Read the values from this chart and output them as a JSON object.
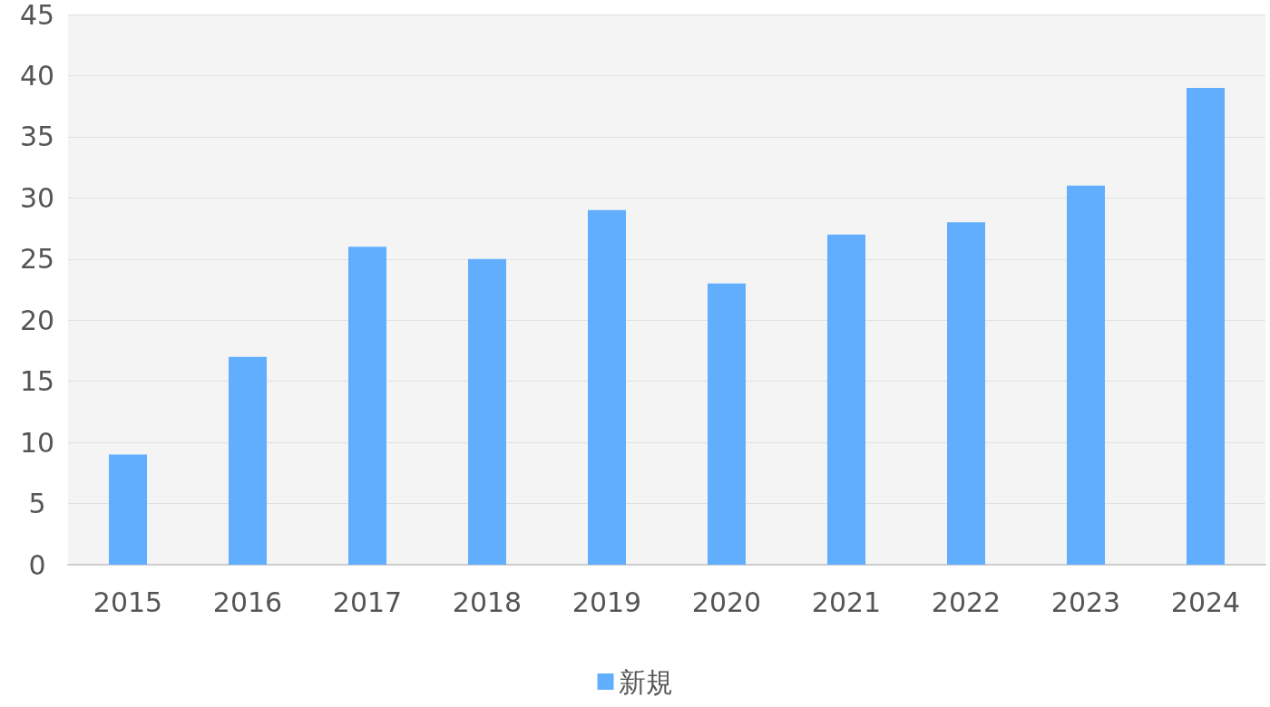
{
  "chart_data": {
    "type": "bar",
    "categories": [
      "2015",
      "2016",
      "2017",
      "2018",
      "2019",
      "2020",
      "2021",
      "2022",
      "2023",
      "2024"
    ],
    "series": [
      {
        "name": "新規",
        "color": "#61aeff",
        "values": [
          9,
          17,
          26,
          25,
          29,
          23,
          27,
          28,
          31,
          39
        ]
      }
    ],
    "ylim": [
      0,
      45
    ],
    "yticks": [
      0,
      5,
      10,
      15,
      20,
      25,
      30,
      35,
      40,
      45
    ],
    "grid": "y",
    "legend": "bottom"
  }
}
